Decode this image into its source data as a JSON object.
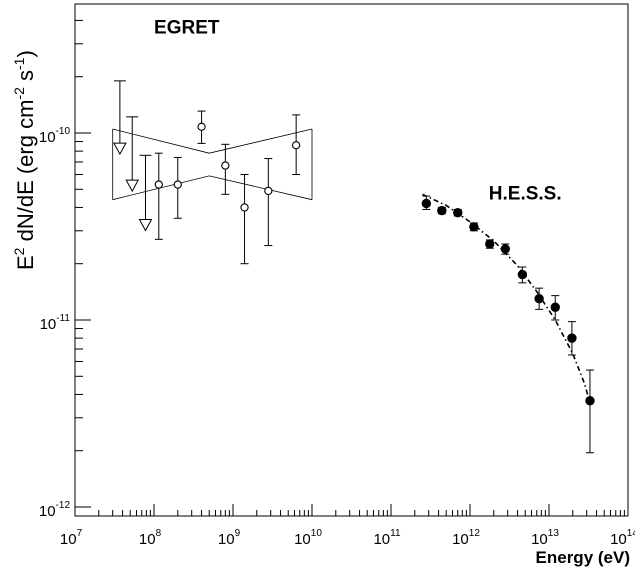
{
  "chart_data": {
    "type": "scatter",
    "title": "",
    "x_scale": "log",
    "y_scale": "log",
    "xlim": [
      10000000.0,
      100000000000000.0
    ],
    "ylim": [
      1e-12,
      6e-10
    ],
    "xlabel": "Energy (eV)",
    "ylabel": {
      "prefix": "E",
      "prefix_sup": "2",
      "main": " dN/dE (erg cm",
      "cm_sup": "-2",
      "s_text": " s",
      "s_sup": "-1",
      "suffix": ")"
    },
    "x_ticks": [
      {
        "value": 10000000.0,
        "base": "10",
        "exp": "7"
      },
      {
        "value": 100000000.0,
        "base": "10",
        "exp": "8"
      },
      {
        "value": 1000000000.0,
        "base": "10",
        "exp": "9"
      },
      {
        "value": 10000000000.0,
        "base": "10",
        "exp": "10"
      },
      {
        "value": 100000000000.0,
        "base": "10",
        "exp": "11"
      },
      {
        "value": 1000000000000.0,
        "base": "10",
        "exp": "12"
      },
      {
        "value": 10000000000000.0,
        "base": "10",
        "exp": "13"
      },
      {
        "value": 100000000000000.0,
        "base": "10",
        "exp": "14"
      }
    ],
    "y_ticks": [
      {
        "value": 1e-12,
        "base": "10",
        "exp": "-12"
      },
      {
        "value": 1e-11,
        "base": "10",
        "exp": "-11"
      },
      {
        "value": 1e-10,
        "base": "10",
        "exp": "-10"
      }
    ],
    "annotations": [
      {
        "text": "EGRET",
        "x": 260000000.0,
        "y": 3.4e-10
      },
      {
        "text": "H.E.S.S.",
        "x": 5000000000000.0,
        "y": 4.4e-11
      }
    ],
    "series": [
      {
        "name": "EGRET",
        "marker": "open-circle",
        "points": [
          {
            "x": 115000000.0,
            "y": 5.3e-11,
            "lo": 2.7e-11,
            "hi": 7.8e-11
          },
          {
            "x": 200000000.0,
            "y": 5.3e-11,
            "lo": 3.5e-11,
            "hi": 7.4e-11
          },
          {
            "x": 400000000.0,
            "y": 1.08e-10,
            "lo": 8.8e-11,
            "hi": 1.31e-10
          },
          {
            "x": 800000000.0,
            "y": 6.7e-11,
            "lo": 4.7e-11,
            "hi": 8.7e-11
          },
          {
            "x": 1400000000.0,
            "y": 4e-11,
            "lo": 2e-11,
            "hi": 6e-11
          },
          {
            "x": 2800000000.0,
            "y": 4.9e-11,
            "lo": 2.5e-11,
            "hi": 7.3e-11
          },
          {
            "x": 6300000000.0,
            "y": 8.6e-11,
            "lo": 6e-11,
            "hi": 1.25e-10
          }
        ]
      },
      {
        "name": "EGRET upper limits",
        "marker": "down-triangle",
        "points": [
          {
            "x": 37000000.0,
            "y": 8.2e-11,
            "top": 1.9e-10
          },
          {
            "x": 53000000.0,
            "y": 5.2e-11,
            "top": 1.22e-10
          },
          {
            "x": 78000000.0,
            "y": 3.2e-11,
            "top": 7.6e-11
          }
        ]
      },
      {
        "name": "EGRET spectral bowtie",
        "type": "band",
        "upper": [
          {
            "x": 30000000.0,
            "y": 1.05e-10
          },
          {
            "x": 500000000.0,
            "y": 7.8e-11
          },
          {
            "x": 10000000000.0,
            "y": 1.05e-10
          }
        ],
        "lower": [
          {
            "x": 30000000.0,
            "y": 4.4e-11
          },
          {
            "x": 500000000.0,
            "y": 5.9e-11
          },
          {
            "x": 10000000000.0,
            "y": 4.4e-11
          }
        ]
      },
      {
        "name": "H.E.S.S.",
        "marker": "filled-circle",
        "points": [
          {
            "x": 280000000000.0,
            "y": 4.2e-11,
            "lo": 3.9e-11,
            "hi": 4.6e-11
          },
          {
            "x": 440000000000.0,
            "y": 3.85e-11,
            "lo": 3.7e-11,
            "hi": 4e-11
          },
          {
            "x": 700000000000.0,
            "y": 3.75e-11,
            "lo": 3.6e-11,
            "hi": 3.9e-11
          },
          {
            "x": 1120000000000.0,
            "y": 3.15e-11,
            "lo": 3e-11,
            "hi": 3.3e-11
          },
          {
            "x": 1780000000000.0,
            "y": 2.55e-11,
            "lo": 2.42e-11,
            "hi": 2.68e-11
          },
          {
            "x": 2800000000000.0,
            "y": 2.4e-11,
            "lo": 2.25e-11,
            "hi": 2.55e-11
          },
          {
            "x": 4600000000000.0,
            "y": 1.75e-11,
            "lo": 1.58e-11,
            "hi": 1.92e-11
          },
          {
            "x": 7500000000000.0,
            "y": 1.3e-11,
            "lo": 1.14e-11,
            "hi": 1.48e-11
          },
          {
            "x": 12000000000000.0,
            "y": 1.17e-11,
            "lo": 1e-11,
            "hi": 1.35e-11
          },
          {
            "x": 19500000000000.0,
            "y": 8e-12,
            "lo": 6.5e-12,
            "hi": 9.8e-12
          },
          {
            "x": 33000000000000.0,
            "y": 3.7e-12,
            "lo": 1.95e-12,
            "hi": 5.4e-12
          }
        ]
      },
      {
        "name": "H.E.S.S. fit",
        "type": "dash-dot-line",
        "points": [
          {
            "x": 250000000000.0,
            "y": 4.7e-11
          },
          {
            "x": 500000000000.0,
            "y": 4.1e-11
          },
          {
            "x": 1000000000000.0,
            "y": 3.35e-11
          },
          {
            "x": 2000000000000.0,
            "y": 2.65e-11
          },
          {
            "x": 4000000000000.0,
            "y": 1.95e-11
          },
          {
            "x": 7000000000000.0,
            "y": 1.42e-11
          },
          {
            "x": 12000000000000.0,
            "y": 1e-11
          },
          {
            "x": 20000000000000.0,
            "y": 6.6e-12
          },
          {
            "x": 28000000000000.0,
            "y": 4.6e-12
          },
          {
            "x": 33000000000000.0,
            "y": 3.6e-12
          }
        ]
      }
    ]
  }
}
